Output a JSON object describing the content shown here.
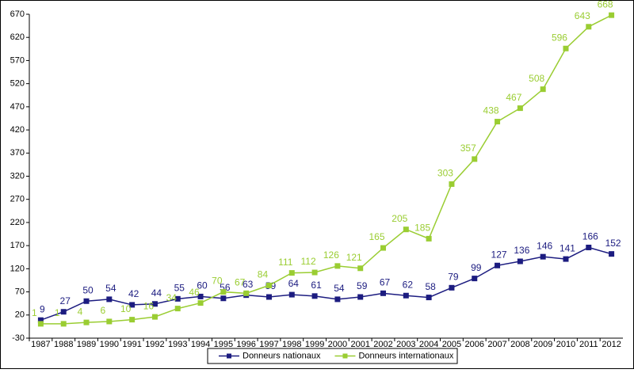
{
  "chart_data": {
    "type": "line",
    "categories": [
      "1987",
      "1988",
      "1989",
      "1990",
      "1991",
      "1992",
      "1993",
      "1994",
      "1995",
      "1996",
      "1997",
      "1998",
      "1999",
      "2000",
      "2001",
      "2002",
      "2003",
      "2004",
      "2005",
      "2006",
      "2007",
      "2008",
      "2009",
      "2010",
      "2011",
      "2012"
    ],
    "series": [
      {
        "name": "Donneurs nationaux",
        "color": "#1c1c80",
        "values": [
          9,
          27,
          50,
          54,
          42,
          44,
          55,
          60,
          56,
          63,
          59,
          64,
          61,
          54,
          59,
          67,
          62,
          58,
          79,
          99,
          127,
          136,
          146,
          141,
          166,
          152
        ]
      },
      {
        "name": "Donneurs internationaux",
        "color": "#9acd32",
        "values": [
          1,
          1,
          4,
          6,
          10,
          16,
          34,
          46,
          70,
          67,
          84,
          111,
          112,
          126,
          121,
          165,
          205,
          185,
          303,
          357,
          438,
          467,
          508,
          596,
          643,
          668
        ]
      }
    ],
    "ylim": [
      -30,
      670
    ],
    "yticks": [
      -30,
      20,
      70,
      120,
      170,
      220,
      270,
      320,
      370,
      420,
      470,
      520,
      570,
      620,
      670
    ],
    "legend": "bottom"
  }
}
